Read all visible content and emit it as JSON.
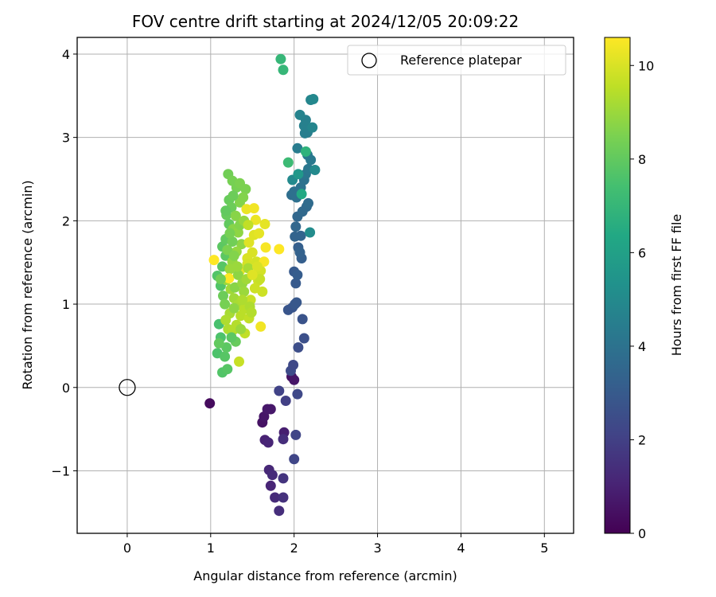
{
  "chart_data": {
    "type": "scatter",
    "title": "FOV centre drift starting at 2024/12/05 20:09:22",
    "xlabel": "Angular distance from reference (arcmin)",
    "ylabel": "Rotation from reference (arcmin)",
    "xlim": [
      -0.6,
      5.35
    ],
    "ylim": [
      -1.75,
      4.2
    ],
    "xticks": [
      0,
      1,
      2,
      3,
      4,
      5
    ],
    "yticks": [
      -1,
      0,
      1,
      2,
      3,
      4
    ],
    "xtick_labels": [
      "0",
      "1",
      "2",
      "3",
      "4",
      "5"
    ],
    "ytick_labels": [
      "−1",
      "0",
      "1",
      "2",
      "3",
      "4"
    ],
    "grid": true,
    "legend": {
      "placement": "top-right",
      "entries": [
        "Reference platepar"
      ]
    },
    "reference_point": {
      "x": 0,
      "y": 0
    },
    "colorbar": {
      "label": "Hours from first FF file",
      "colormap": "viridis",
      "range": [
        0,
        10.6
      ],
      "ticks": [
        0,
        2,
        4,
        6,
        8,
        10
      ],
      "tick_labels": [
        "0",
        "2",
        "4",
        "6",
        "8",
        "10"
      ]
    },
    "points": [
      [
        0.99,
        -0.19,
        0.3
      ],
      [
        1.62,
        -0.42,
        0.5
      ],
      [
        1.64,
        -0.35,
        0.6
      ],
      [
        1.68,
        -0.26,
        0.7
      ],
      [
        1.72,
        -0.26,
        0.7
      ],
      [
        1.88,
        -0.54,
        0.9
      ],
      [
        1.65,
        -0.63,
        1.0
      ],
      [
        1.69,
        -0.66,
        1.1
      ],
      [
        1.7,
        -0.99,
        1.2
      ],
      [
        1.72,
        -1.18,
        1.1
      ],
      [
        1.74,
        -1.05,
        1.3
      ],
      [
        1.77,
        -1.32,
        1.3
      ],
      [
        1.82,
        -1.48,
        1.4
      ],
      [
        1.87,
        -1.32,
        1.5
      ],
      [
        1.87,
        -1.09,
        1.6
      ],
      [
        1.87,
        -0.62,
        1.4
      ],
      [
        1.97,
        0.13,
        0.5
      ],
      [
        2.0,
        0.09,
        0.6
      ],
      [
        1.82,
        -0.04,
        2.1
      ],
      [
        1.9,
        -0.16,
        2.0
      ],
      [
        2.0,
        -0.86,
        2.2
      ],
      [
        2.02,
        -0.57,
        2.2
      ],
      [
        2.04,
        -0.08,
        2.3
      ],
      [
        1.96,
        0.2,
        2.4
      ],
      [
        1.99,
        0.27,
        2.3
      ],
      [
        2.05,
        0.48,
        2.5
      ],
      [
        2.12,
        0.59,
        2.6
      ],
      [
        2.1,
        0.82,
        2.7
      ],
      [
        1.93,
        0.93,
        2.8
      ],
      [
        1.98,
        0.96,
        2.8
      ],
      [
        2.01,
        1.0,
        2.9
      ],
      [
        2.03,
        1.02,
        2.9
      ],
      [
        2.02,
        1.25,
        3.0
      ],
      [
        2.0,
        1.39,
        3.0
      ],
      [
        2.04,
        1.35,
        3.1
      ],
      [
        2.09,
        1.55,
        3.2
      ],
      [
        2.05,
        1.68,
        3.2
      ],
      [
        2.07,
        1.62,
        3.3
      ],
      [
        2.01,
        1.81,
        3.4
      ],
      [
        2.08,
        1.82,
        3.4
      ],
      [
        2.02,
        1.93,
        3.5
      ],
      [
        2.04,
        2.05,
        3.5
      ],
      [
        2.1,
        2.11,
        3.6
      ],
      [
        2.15,
        2.17,
        3.6
      ],
      [
        2.17,
        2.21,
        3.7
      ],
      [
        1.97,
        2.31,
        3.8
      ],
      [
        2.0,
        2.35,
        3.9
      ],
      [
        2.03,
        2.28,
        3.9
      ],
      [
        2.08,
        2.4,
        4.0
      ],
      [
        2.12,
        2.49,
        4.0
      ],
      [
        2.14,
        2.56,
        4.1
      ],
      [
        2.17,
        2.62,
        4.2
      ],
      [
        2.2,
        2.73,
        4.3
      ],
      [
        2.16,
        2.79,
        4.3
      ],
      [
        2.04,
        2.87,
        4.4
      ],
      [
        2.13,
        3.05,
        4.5
      ],
      [
        2.16,
        3.06,
        4.5
      ],
      [
        2.12,
        3.14,
        4.6
      ],
      [
        2.14,
        3.21,
        4.6
      ],
      [
        2.07,
        3.27,
        4.7
      ],
      [
        2.22,
        3.12,
        4.8
      ],
      [
        2.2,
        3.45,
        4.8
      ],
      [
        2.23,
        3.46,
        4.9
      ],
      [
        2.25,
        2.61,
        5.0
      ],
      [
        2.19,
        1.86,
        5.1
      ],
      [
        1.98,
        2.49,
        5.0
      ],
      [
        2.05,
        2.56,
        5.6
      ],
      [
        2.09,
        2.32,
        6.4
      ],
      [
        2.14,
        2.83,
        6.8
      ],
      [
        1.84,
        3.94,
        7.0
      ],
      [
        1.87,
        3.81,
        7.0
      ],
      [
        1.93,
        2.7,
        7.2
      ],
      [
        1.1,
        0.76,
        7.5
      ],
      [
        1.12,
        0.6,
        7.6
      ],
      [
        1.08,
        0.41,
        7.6
      ],
      [
        1.14,
        0.18,
        7.7
      ],
      [
        1.17,
        0.37,
        7.8
      ],
      [
        1.19,
        0.48,
        7.9
      ],
      [
        1.2,
        0.22,
        7.8
      ],
      [
        1.1,
        0.53,
        8.0
      ],
      [
        1.12,
        1.22,
        7.7
      ],
      [
        1.08,
        1.34,
        7.7
      ],
      [
        1.14,
        1.45,
        7.8
      ],
      [
        1.18,
        1.58,
        7.9
      ],
      [
        1.14,
        1.69,
        7.9
      ],
      [
        1.18,
        1.78,
        8.0
      ],
      [
        1.22,
        1.96,
        8.0
      ],
      [
        1.19,
        2.07,
        8.1
      ],
      [
        1.22,
        2.25,
        8.1
      ],
      [
        1.25,
        2.16,
        8.2
      ],
      [
        1.21,
        2.56,
        8.3
      ],
      [
        1.26,
        2.48,
        8.4
      ],
      [
        1.31,
        2.4,
        8.4
      ],
      [
        1.35,
        2.45,
        8.5
      ],
      [
        1.42,
        2.38,
        8.5
      ],
      [
        1.39,
        2.28,
        8.6
      ],
      [
        1.35,
        2.22,
        8.6
      ],
      [
        1.3,
        2.06,
        8.7
      ],
      [
        1.27,
        1.9,
        8.7
      ],
      [
        1.33,
        1.86,
        8.8
      ],
      [
        1.37,
        1.72,
        8.8
      ],
      [
        1.31,
        1.63,
        8.9
      ],
      [
        1.26,
        1.51,
        8.9
      ],
      [
        1.23,
        1.42,
        9.0
      ],
      [
        1.19,
        1.29,
        9.0
      ],
      [
        1.24,
        1.18,
        9.1
      ],
      [
        1.28,
        1.07,
        9.1
      ],
      [
        1.32,
        0.99,
        9.2
      ],
      [
        1.23,
        0.89,
        9.2
      ],
      [
        1.18,
        0.81,
        9.3
      ],
      [
        1.21,
        0.7,
        9.3
      ],
      [
        1.27,
        0.69,
        9.4
      ],
      [
        1.31,
        0.75,
        9.4
      ],
      [
        1.36,
        0.86,
        9.5
      ],
      [
        1.4,
        0.94,
        9.5
      ],
      [
        1.46,
        0.83,
        9.6
      ],
      [
        1.41,
        0.65,
        9.6
      ],
      [
        1.34,
        0.31,
        9.7
      ],
      [
        1.48,
        1.05,
        9.7
      ],
      [
        1.53,
        1.19,
        9.8
      ],
      [
        1.57,
        1.28,
        9.8
      ],
      [
        1.6,
        1.4,
        9.9
      ],
      [
        1.55,
        1.51,
        9.9
      ],
      [
        1.5,
        1.62,
        10.0
      ],
      [
        1.44,
        1.55,
        10.0
      ],
      [
        1.46,
        1.74,
        10.1
      ],
      [
        1.52,
        1.83,
        10.1
      ],
      [
        1.58,
        1.85,
        10.2
      ],
      [
        1.65,
        1.96,
        10.2
      ],
      [
        1.54,
        2.01,
        10.3
      ],
      [
        1.43,
        2.14,
        10.3
      ],
      [
        1.52,
        2.15,
        10.4
      ],
      [
        1.6,
        0.73,
        10.4
      ],
      [
        1.64,
        1.51,
        10.5
      ],
      [
        1.66,
        1.68,
        10.5
      ],
      [
        1.82,
        1.66,
        10.6
      ],
      [
        1.04,
        1.53,
        10.6
      ],
      [
        1.22,
        1.31,
        10.6
      ],
      [
        1.35,
        1.4,
        10.2
      ],
      [
        1.44,
        1.48,
        9.9
      ],
      [
        1.12,
        1.3,
        8.3
      ],
      [
        1.15,
        1.1,
        8.2
      ],
      [
        1.17,
        1.0,
        8.4
      ],
      [
        1.2,
        1.65,
        8.5
      ],
      [
        1.28,
        1.58,
        8.6
      ],
      [
        1.29,
        1.2,
        8.7
      ],
      [
        1.33,
        1.35,
        8.8
      ],
      [
        1.38,
        1.25,
        8.9
      ],
      [
        1.4,
        1.15,
        9.0
      ],
      [
        1.43,
        1.3,
        9.1
      ],
      [
        1.45,
        1.43,
        9.2
      ],
      [
        1.47,
        0.97,
        9.3
      ],
      [
        1.49,
        0.9,
        9.4
      ],
      [
        1.3,
        0.55,
        8.1
      ],
      [
        1.25,
        0.6,
        7.9
      ],
      [
        1.36,
        0.7,
        9.0
      ],
      [
        1.26,
        1.75,
        8.3
      ],
      [
        1.35,
        1.95,
        8.6
      ],
      [
        1.4,
        2.0,
        8.9
      ],
      [
        1.45,
        1.95,
        9.6
      ],
      [
        1.56,
        1.45,
        10.0
      ],
      [
        1.59,
        1.3,
        9.7
      ],
      [
        1.62,
        1.15,
        9.8
      ],
      [
        1.5,
        1.35,
        10.1
      ],
      [
        1.38,
        1.05,
        9.3
      ],
      [
        1.28,
        0.95,
        8.8
      ],
      [
        1.32,
        1.45,
        9.0
      ],
      [
        1.27,
        2.3,
        8.2
      ],
      [
        1.18,
        2.12,
        8.0
      ],
      [
        1.23,
        1.85,
        8.4
      ]
    ]
  }
}
